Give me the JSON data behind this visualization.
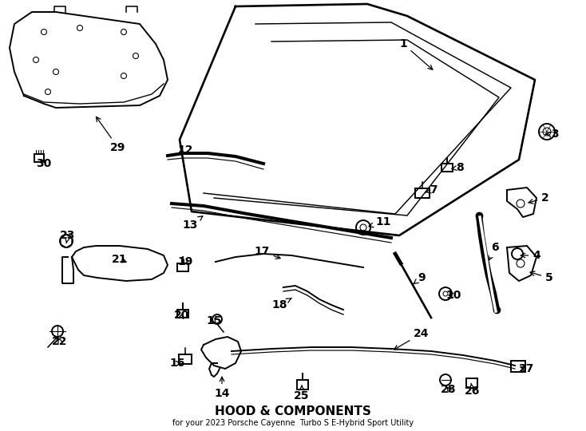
{
  "title": "HOOD & COMPONENTS",
  "subtitle": "for your 2023 Porsche Cayenne  Turbo S E-Hybrid Sport Utility",
  "bg": "#ffffff",
  "lc": "#000000",
  "figsize": [
    7.34,
    5.4
  ],
  "dpi": 100
}
